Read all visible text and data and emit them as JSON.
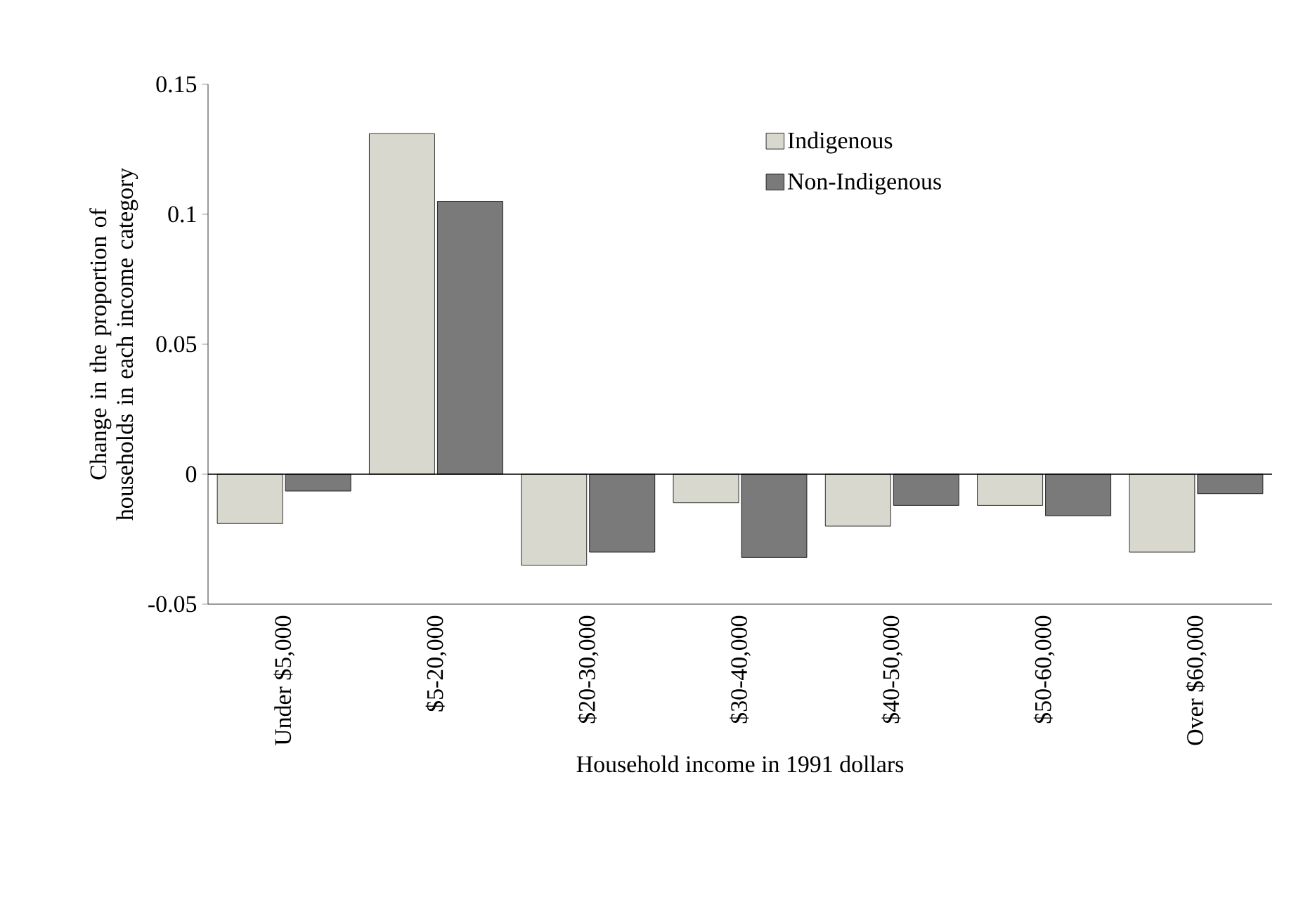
{
  "chart_data": {
    "type": "bar",
    "xlabel": "Household income in 1991 dollars",
    "ylabel": "Change in the proportion of households in each income category",
    "categories": [
      "Under $5,000",
      "$5-20,000",
      "$20-30,000",
      "$30-40,000",
      "$40-50,000",
      "$50-60,000",
      "Over $60,000"
    ],
    "series": [
      {
        "name": "Indigenous",
        "color": "#d9d8cf",
        "values": [
          -0.019,
          0.131,
          -0.035,
          -0.011,
          -0.02,
          -0.012,
          -0.03
        ]
      },
      {
        "name": "Non-Indigenous",
        "color": "#7a7a7a",
        "values": [
          -0.0065,
          0.105,
          -0.03,
          -0.032,
          -0.012,
          -0.016,
          -0.0075
        ]
      }
    ],
    "ylim": [
      -0.05,
      0.15
    ],
    "yticks": [
      -0.05,
      0,
      0.05,
      0.1,
      0.15
    ],
    "ref_lines": [
      {
        "axis": "y",
        "value": 0,
        "color": "#000000"
      }
    ],
    "grid": false,
    "legend": "top right"
  }
}
